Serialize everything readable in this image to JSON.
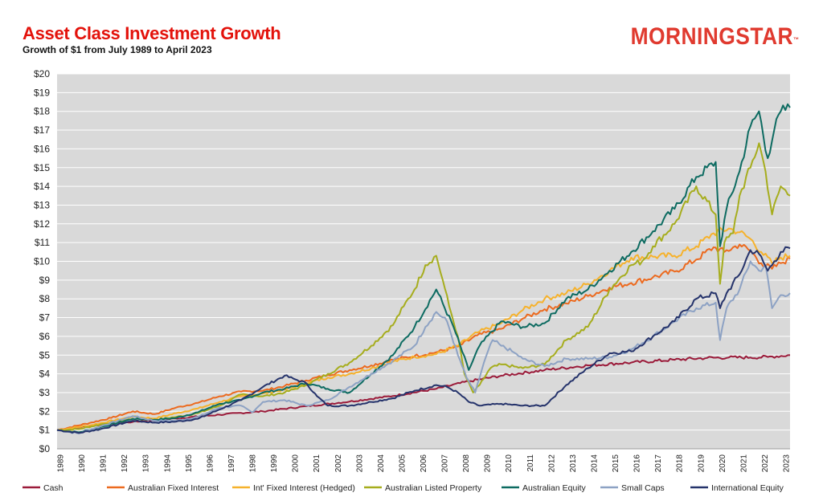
{
  "header": {
    "title": "Asset Class Investment Growth",
    "subtitle": "Growth of $1 from July 1989 to April 2023",
    "logo": "MORNINGSTAR"
  },
  "chart_data": {
    "type": "line",
    "title": "Asset Class Investment Growth",
    "subtitle": "Growth of $1 from July 1989 to April 2023",
    "xlabel": "",
    "ylabel": "",
    "xlim": [
      1989.5,
      2023.33
    ],
    "ylim": [
      0,
      20
    ],
    "y_ticks": [
      0,
      1,
      2,
      3,
      4,
      5,
      6,
      7,
      8,
      9,
      10,
      11,
      12,
      13,
      14,
      15,
      16,
      17,
      18,
      19,
      20
    ],
    "y_tick_labels": [
      "$0",
      "$1",
      "$2",
      "$3",
      "$4",
      "$5",
      "$6",
      "$7",
      "$8",
      "$9",
      "$10",
      "$11",
      "$12",
      "$13",
      "$14",
      "$15",
      "$16",
      "$17",
      "$18",
      "$19",
      "$20"
    ],
    "x_tick_labels": [
      "1989",
      "1990",
      "1991",
      "1992",
      "1993",
      "1994",
      "1995",
      "1996",
      "1997",
      "1998",
      "1999",
      "2000",
      "2001",
      "2002",
      "2003",
      "2004",
      "2005",
      "2006",
      "2007",
      "2008",
      "2009",
      "2010",
      "2011",
      "2012",
      "2013",
      "2014",
      "2015",
      "2016",
      "2017",
      "2018",
      "2019",
      "2020",
      "2021",
      "2022",
      "2023"
    ],
    "grid": true,
    "legend_position": "bottom",
    "series": [
      {
        "name": "Cash",
        "color": "#9b1b3a",
        "x": [
          1989.5,
          1991,
          1993,
          1995,
          1997,
          1999,
          2001,
          2003,
          2005,
          2007,
          2008.5,
          2010,
          2012,
          2014,
          2016,
          2018,
          2019.5,
          2020.5,
          2021.5,
          2022.3,
          2023.33
        ],
        "y": [
          1.0,
          1.22,
          1.44,
          1.62,
          1.82,
          2.0,
          2.27,
          2.52,
          2.82,
          3.2,
          3.6,
          3.9,
          4.2,
          4.45,
          4.6,
          4.75,
          4.85,
          4.87,
          4.87,
          4.9,
          5.0
        ]
      },
      {
        "name": "Australian Fixed Interest",
        "color": "#ec6a1f",
        "x": [
          1989.5,
          1991,
          1992,
          1993,
          1994,
          1995,
          1996,
          1997,
          1998,
          1999,
          2000,
          2001,
          2002,
          2003,
          2004,
          2005,
          2006,
          2007,
          2008,
          2008.9,
          2010,
          2011,
          2012,
          2013,
          2014,
          2015,
          2016,
          2017,
          2018,
          2019,
          2019.8,
          2020.3,
          2021,
          2021.5,
          2022,
          2022.5,
          2022.9,
          2023.33
        ],
        "y": [
          1.0,
          1.38,
          1.65,
          2.0,
          1.85,
          2.2,
          2.45,
          2.8,
          3.05,
          3.1,
          3.35,
          3.65,
          3.95,
          4.2,
          4.45,
          4.75,
          4.95,
          5.15,
          5.45,
          6.05,
          6.4,
          6.95,
          7.45,
          7.75,
          8.15,
          8.6,
          8.85,
          9.15,
          9.45,
          10.1,
          10.75,
          10.5,
          10.9,
          10.55,
          9.9,
          9.6,
          9.9,
          10.15
        ]
      },
      {
        "name": "Int' Fixed Interest (Hedged)",
        "color": "#f6b22c",
        "x": [
          1989.5,
          1991,
          1993,
          1994,
          1995,
          1996,
          1997,
          1998,
          1999,
          2000,
          2001,
          2002,
          2003,
          2004,
          2005,
          2006,
          2007,
          2008,
          2008.9,
          2010,
          2011,
          2012,
          2013,
          2014,
          2015,
          2016,
          2017,
          2018,
          2019,
          2019.8,
          2020.5,
          2021,
          2021.5,
          2022,
          2022.5,
          2022.9,
          2023.33
        ],
        "y": [
          1.0,
          1.25,
          1.72,
          1.62,
          1.9,
          2.15,
          2.5,
          2.8,
          2.95,
          3.15,
          3.5,
          3.8,
          4.0,
          4.3,
          4.65,
          4.9,
          5.05,
          5.5,
          6.2,
          6.7,
          7.4,
          8.0,
          8.3,
          8.8,
          9.5,
          10.2,
          10.25,
          10.3,
          10.8,
          11.5,
          11.75,
          11.55,
          11.2,
          10.5,
          9.9,
          10.2,
          10.3
        ]
      },
      {
        "name": "Australian Listed Property",
        "color": "#a6ad1d",
        "x": [
          1989.5,
          1990.5,
          1991.5,
          1993,
          1994,
          1995,
          1996,
          1997,
          1998,
          1999,
          2000,
          2001,
          2002,
          2003,
          2004,
          2005,
          2005.5,
          2006,
          2006.5,
          2007,
          2007.3,
          2007.6,
          2008,
          2008.3,
          2008.7,
          2009,
          2009.5,
          2010,
          2011,
          2012,
          2013,
          2014,
          2015,
          2016,
          2016.5,
          2017,
          2018,
          2019,
          2019.9,
          2020.1,
          2020.3,
          2020.7,
          2021,
          2021.5,
          2021.9,
          2022.2,
          2022.5,
          2022.9,
          2023.33
        ],
        "y": [
          1.0,
          1.05,
          1.3,
          1.6,
          1.55,
          1.7,
          1.9,
          2.3,
          2.9,
          2.8,
          3.0,
          3.4,
          4.0,
          4.6,
          5.5,
          6.6,
          7.6,
          8.5,
          9.8,
          10.3,
          9.0,
          7.6,
          6.0,
          4.0,
          3.0,
          3.4,
          4.3,
          4.5,
          4.3,
          4.5,
          5.8,
          6.5,
          8.5,
          9.8,
          10.0,
          10.8,
          12.0,
          14.0,
          12.5,
          8.8,
          11.0,
          11.5,
          13.5,
          15.0,
          16.3,
          14.8,
          12.5,
          14.0,
          13.5
        ]
      },
      {
        "name": "Australian Equity",
        "color": "#0d6b61",
        "x": [
          1989.5,
          1990.5,
          1991.5,
          1993,
          1994,
          1995,
          1996,
          1997,
          1998,
          1999,
          2000,
          2001,
          2002,
          2003,
          2004,
          2005,
          2006,
          2007,
          2007.8,
          2008.5,
          2009,
          2010,
          2011,
          2012,
          2013,
          2014,
          2015,
          2016,
          2017,
          2018,
          2019,
          2019.9,
          2020.1,
          2020.4,
          2021,
          2021.5,
          2021.9,
          2022.3,
          2022.6,
          2022.9,
          2023.33
        ],
        "y": [
          1.0,
          0.88,
          1.15,
          1.6,
          1.55,
          1.65,
          1.95,
          2.4,
          2.6,
          3.0,
          3.2,
          3.5,
          3.2,
          3.0,
          4.0,
          5.0,
          6.5,
          8.5,
          6.5,
          4.2,
          5.5,
          6.8,
          6.5,
          6.7,
          8.0,
          8.5,
          9.5,
          10.5,
          11.6,
          12.8,
          14.5,
          15.3,
          10.8,
          12.8,
          14.8,
          17.2,
          18.0,
          15.5,
          17.0,
          18.0,
          18.2
        ]
      },
      {
        "name": "Small Caps",
        "color": "#8da2c4",
        "x": [
          1989.5,
          1990.5,
          1991.5,
          1993,
          1994,
          1995,
          1996,
          1997,
          1998,
          1998.5,
          1999,
          2000,
          2001,
          2002,
          2003,
          2004,
          2005,
          2006,
          2006.5,
          2007,
          2007.5,
          2008,
          2008.4,
          2008.8,
          2009.2,
          2009.6,
          2010,
          2010.5,
          2011,
          2012,
          2013,
          2014,
          2015,
          2016,
          2017,
          2018,
          2019,
          2019.9,
          2020.1,
          2020.4,
          2021,
          2021.5,
          2021.9,
          2022.2,
          2022.5,
          2022.9,
          2023.33
        ],
        "y": [
          1.0,
          0.82,
          1.2,
          1.75,
          1.5,
          1.5,
          1.7,
          2.2,
          2.3,
          1.95,
          2.5,
          2.6,
          2.3,
          2.6,
          3.3,
          4.0,
          4.7,
          5.5,
          6.5,
          7.3,
          6.8,
          5.0,
          3.8,
          3.0,
          4.6,
          5.8,
          5.5,
          5.2,
          4.8,
          4.4,
          4.8,
          4.8,
          4.9,
          5.3,
          6.0,
          6.8,
          7.5,
          7.8,
          5.8,
          7.5,
          8.5,
          10.0,
          9.5,
          9.8,
          7.5,
          8.2,
          8.3
        ]
      },
      {
        "name": "International Equity",
        "color": "#25336b",
        "x": [
          1989.5,
          1990.5,
          1991.5,
          1993,
          1994,
          1995,
          1996,
          1997,
          1998,
          1999,
          2000,
          2000.5,
          2001,
          2001.5,
          2002,
          2003,
          2004,
          2005,
          2006,
          2007,
          2007.5,
          2008,
          2008.5,
          2009,
          2010,
          2011,
          2012,
          2013,
          2014,
          2015,
          2016,
          2017,
          2018,
          2019,
          2019.9,
          2020.1,
          2020.4,
          2021,
          2021.5,
          2021.9,
          2022.3,
          2022.6,
          2022.9,
          2023.33
        ],
        "y": [
          1.0,
          0.85,
          1.05,
          1.5,
          1.4,
          1.45,
          1.6,
          2.1,
          2.6,
          3.3,
          3.9,
          3.7,
          3.5,
          2.8,
          2.3,
          2.3,
          2.5,
          2.7,
          3.1,
          3.4,
          3.3,
          3.0,
          2.5,
          2.3,
          2.4,
          2.3,
          2.3,
          3.4,
          4.3,
          5.1,
          5.2,
          6.0,
          6.8,
          8.0,
          8.3,
          7.5,
          8.3,
          9.3,
          10.6,
          10.4,
          9.5,
          10.0,
          10.5,
          10.7
        ]
      }
    ]
  }
}
